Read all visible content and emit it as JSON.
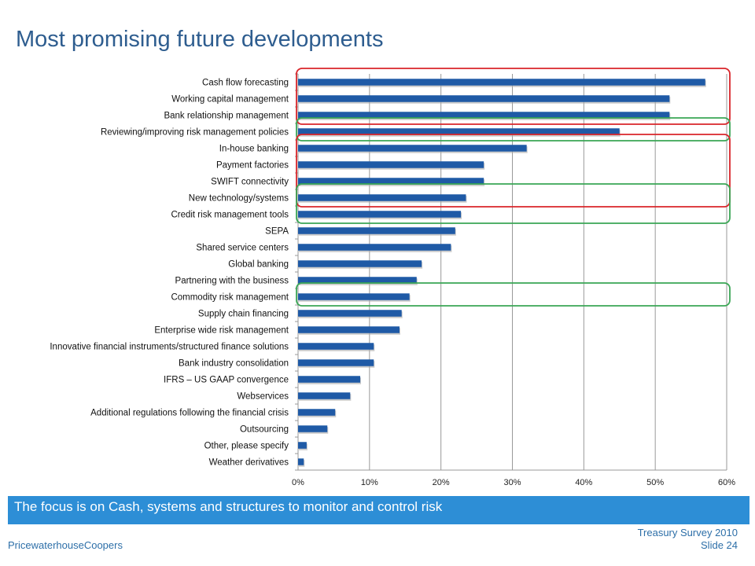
{
  "slide": {
    "title": "Most promising future developments",
    "banner_text": "The focus is on Cash, systems and structures to monitor and control risk",
    "company": "PricewaterhouseCoopers",
    "survey": "Treasury Survey 2010",
    "slide_number": "Slide 24"
  },
  "colors": {
    "bar": "#1f5aa6",
    "bar_shadow": "#a9a9a9",
    "red_box": "#d9252a",
    "green_box": "#3aa655",
    "grid": "#999999",
    "banner": "#2d8ed6",
    "title": "#2e5d8f"
  },
  "chart_data": {
    "type": "bar",
    "orientation": "horizontal",
    "categories": [
      "Cash flow forecasting",
      "Working capital management",
      "Bank relationship management",
      "Reviewing/improving risk management policies",
      "In-house banking",
      "Payment factories",
      "SWIFT connectivity",
      "New technology/systems",
      "Credit risk management tools",
      "SEPA",
      "Shared service centers",
      "Global banking",
      "Partnering with the business",
      "Commodity risk management",
      "Supply chain financing",
      "Enterprise wide risk management",
      "Innovative financial instruments/structured finance solutions",
      "Bank industry consolidation",
      "IFRS – US GAAP convergence",
      "Webservices",
      "Additional regulations following the financial crisis",
      "Outsourcing",
      "Other, please specify",
      "Weather derivatives"
    ],
    "values": [
      57,
      52,
      52,
      45,
      32,
      26,
      26,
      23.5,
      22.8,
      22,
      21.4,
      17.3,
      16.6,
      15.6,
      14.5,
      14.2,
      10.6,
      10.6,
      8.7,
      7.3,
      5.2,
      4.1,
      1.2,
      0.8
    ],
    "xlim": [
      0,
      60
    ],
    "xticks": [
      "0%",
      "10%",
      "20%",
      "30%",
      "40%",
      "50%",
      "60%"
    ],
    "grid": "vertical",
    "highlights": [
      {
        "color": "red",
        "from": 0,
        "to": 2
      },
      {
        "color": "green",
        "from": 3,
        "to": 3
      },
      {
        "color": "red",
        "from": 4,
        "to": 7
      },
      {
        "color": "green",
        "from": 7,
        "to": 8
      },
      {
        "color": "green",
        "from": 13,
        "to": 13
      }
    ]
  }
}
